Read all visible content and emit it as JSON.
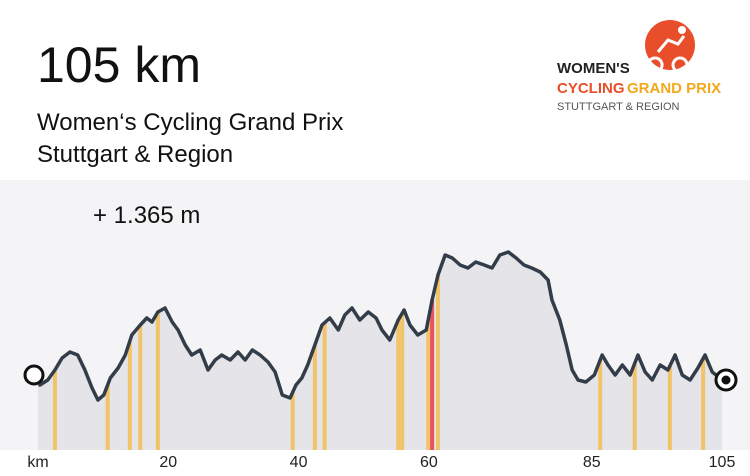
{
  "header": {
    "title": "105 km",
    "subtitle_line1": "Women‘s Cycling Grand Prix",
    "subtitle_line2": "Stuttgart & Region"
  },
  "logo": {
    "line1": "WOMEN'S",
    "line2a": "CYCLING",
    "line2b": "GRAND PRIX",
    "line3": "STUTTGART & REGION"
  },
  "chart_data": {
    "type": "area",
    "annotation": "+ 1.365 m",
    "x": [
      0,
      0.3,
      1.5,
      2.6,
      3.7,
      4.9,
      6.1,
      7.2,
      8.3,
      9.2,
      10.1,
      11.1,
      12.3,
      13.4,
      14.4,
      15.7,
      16.7,
      17.5,
      18.4,
      19.5,
      20.6,
      21.5,
      22.6,
      23.6,
      24.9,
      26.1,
      27.2,
      28.2,
      29.5,
      30.7,
      31.8,
      32.9,
      34.1,
      35.3,
      36.4,
      37.5,
      38.7,
      39.6,
      40.5,
      41.4,
      42.5,
      43.6,
      44.8,
      46.1,
      47.1,
      48.2,
      49.4,
      50.7,
      51.9,
      52.8,
      54.0,
      55.3,
      56.2,
      57.1,
      58.3,
      59.6,
      60.5,
      61.4,
      62.5,
      63.6,
      64.8,
      66.0,
      67.2,
      68.5,
      69.7,
      70.9,
      72.2,
      73.4,
      74.6,
      75.8,
      77.1,
      78.3,
      78.9,
      80.1,
      81.1,
      82.0,
      82.9,
      84.1,
      85.4,
      86.6,
      87.5,
      88.6,
      89.7,
      90.9,
      92.1,
      93.2,
      94.3,
      95.5,
      96.7,
      97.8,
      98.9,
      100.1,
      101.3,
      102.4,
      103.5,
      104.7,
      105
    ],
    "values": [
      85,
      75,
      80,
      90,
      102,
      108,
      105,
      90,
      72,
      60,
      65,
      82,
      92,
      105,
      125,
      135,
      142,
      138,
      148,
      152,
      138,
      130,
      115,
      105,
      110,
      90,
      100,
      105,
      100,
      108,
      100,
      110,
      105,
      98,
      88,
      65,
      62,
      75,
      82,
      95,
      115,
      135,
      142,
      130,
      145,
      152,
      140,
      148,
      142,
      130,
      120,
      140,
      150,
      135,
      125,
      130,
      160,
      185,
      205,
      202,
      195,
      192,
      198,
      195,
      192,
      205,
      208,
      202,
      195,
      192,
      188,
      180,
      160,
      140,
      115,
      90,
      80,
      78,
      85,
      105,
      95,
      85,
      95,
      85,
      105,
      88,
      80,
      95,
      90,
      105,
      85,
      80,
      92,
      105,
      88,
      82,
      80
    ],
    "line_color": "#333d4a",
    "fill_color": "#e4e4e9",
    "climbs": [
      {
        "x": 2.6,
        "color": "#f2c46a"
      },
      {
        "x": 10.7,
        "color": "#f2c46a"
      },
      {
        "x": 14.1,
        "color": "#f2c46a"
      },
      {
        "x": 15.7,
        "color": "#f2c46a"
      },
      {
        "x": 18.4,
        "color": "#f2c46a"
      },
      {
        "x": 39.1,
        "color": "#f2c46a"
      },
      {
        "x": 42.5,
        "color": "#f2c46a"
      },
      {
        "x": 44.0,
        "color": "#f2c46a"
      },
      {
        "x": 55.3,
        "color": "#f2c46a"
      },
      {
        "x": 55.9,
        "color": "#f2c46a"
      },
      {
        "x": 59.9,
        "color": "#f2c46a"
      },
      {
        "x": 60.5,
        "color": "#e9545a"
      },
      {
        "x": 61.4,
        "color": "#f2c46a"
      },
      {
        "x": 86.3,
        "color": "#f2c46a"
      },
      {
        "x": 91.6,
        "color": "#f2c46a"
      },
      {
        "x": 97.0,
        "color": "#f2c46a"
      },
      {
        "x": 102.1,
        "color": "#f2c46a"
      }
    ],
    "xlim": [
      0,
      105
    ],
    "xticks": [
      {
        "value": 0,
        "label": "km"
      },
      20,
      40,
      60,
      85,
      105
    ],
    "ylim": [
      10,
      280
    ]
  }
}
